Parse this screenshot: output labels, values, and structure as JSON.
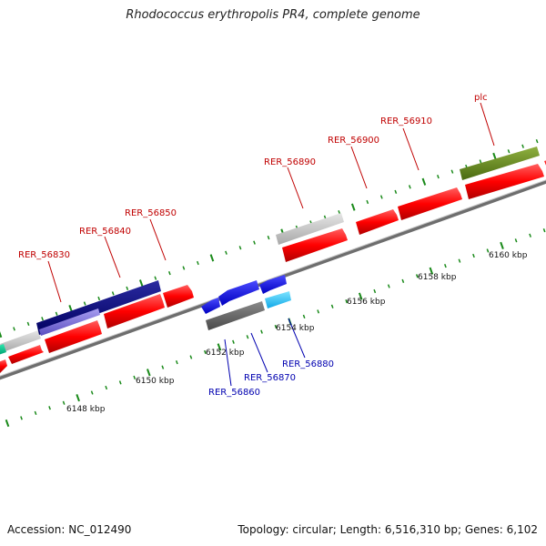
{
  "title": "Rhodococcus erythropolis PR4, complete genome",
  "footer": {
    "accession": "Accession: NC_012490",
    "topology": "Topology: circular; Length: 6,516,310 bp; Genes: 6,102"
  },
  "colors": {
    "cds": "#ff0000",
    "gene_gray": "#c8c8c8",
    "gene_navy": "#0a0a80",
    "gene_olive": "#6b8e23",
    "gene_blue": "#1010ff",
    "gene_cyan": "#22c8ff",
    "gene_dark": "#6a6a6a",
    "gene_teal": "#00c890",
    "tick_green": "#1a8a1a",
    "label_fwd": "#c00000",
    "label_rev": "#0000b0"
  },
  "scale_labels": [
    "6148 kbp",
    "6150 kbp",
    "6152 kbp",
    "6154 kbp",
    "6156 kbp",
    "6158 kbp",
    "6160 kbp"
  ],
  "forward_labels": [
    "RER_56830",
    "RER_56840",
    "RER_56850",
    "RER_56890",
    "RER_56900",
    "RER_56910",
    "plc"
  ],
  "reverse_labels": [
    "RER_56860",
    "RER_56870",
    "RER_56880"
  ]
}
